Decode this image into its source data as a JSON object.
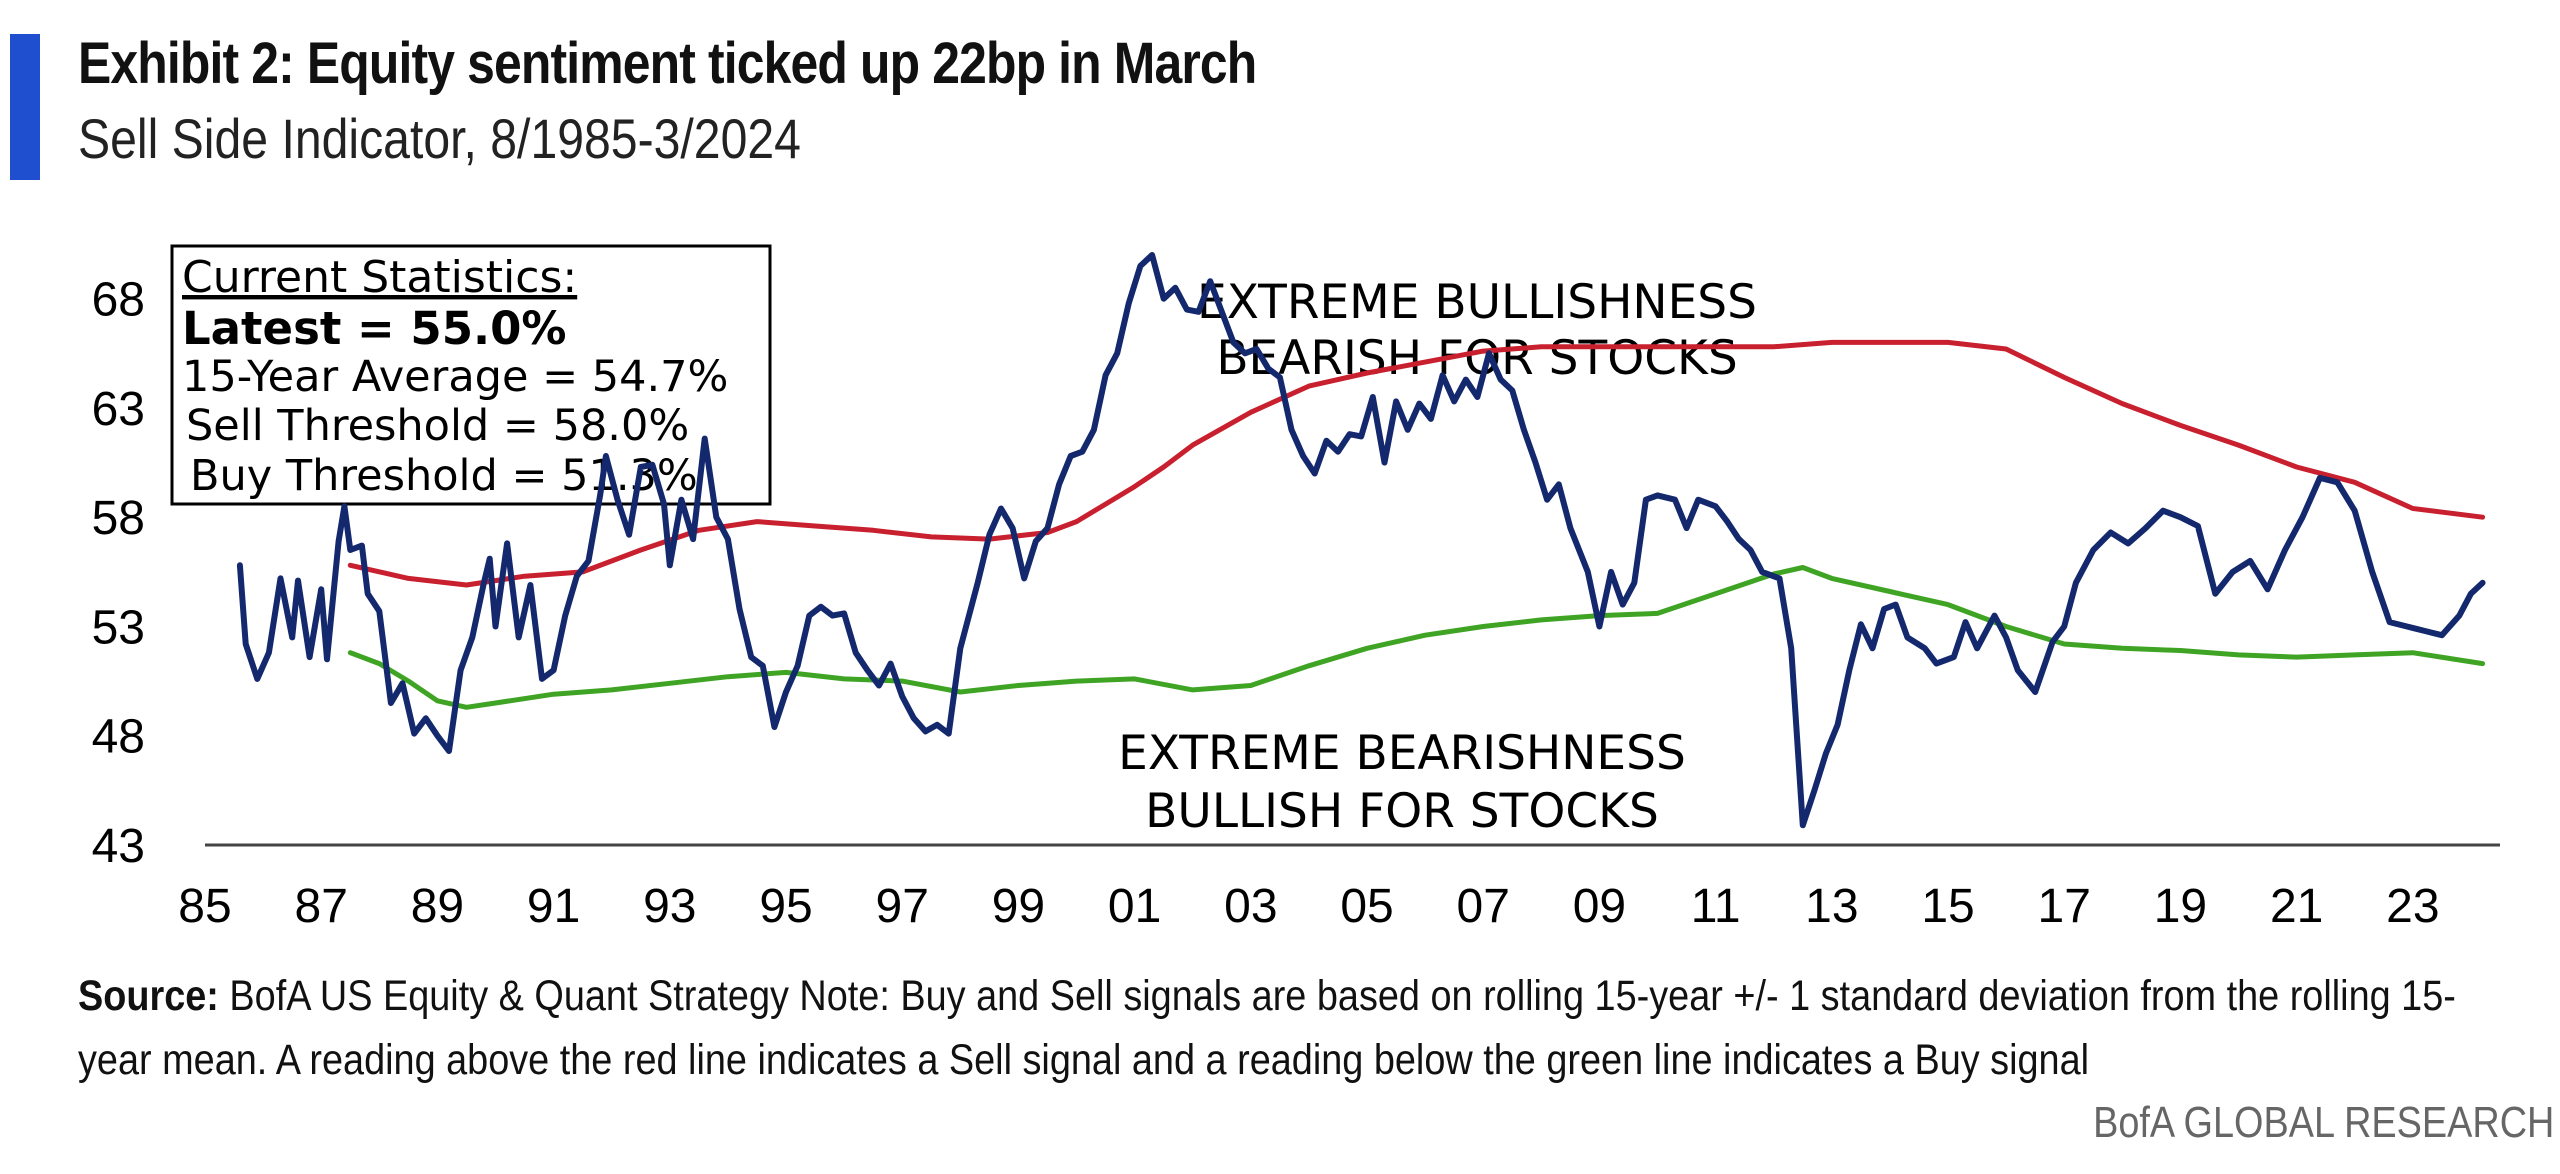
{
  "header": {
    "title": "Exhibit 2: Equity sentiment ticked up 22bp in March",
    "subtitle": "Sell Side Indicator, 8/1985-3/2024",
    "accent_color": "#1f4fcf"
  },
  "stats_box": {
    "heading": "Current Statistics:",
    "latest": "Latest = 55.0%",
    "average": "15-Year Average = 54.7%",
    "sell": "Sell Threshold = 58.0%",
    "buy": "Buy Threshold = 51.3%"
  },
  "annotations": {
    "bull_line1": "EXTREME BULLISHNESS",
    "bull_line2": "BEARISH FOR STOCKS",
    "bear_line1": "EXTREME BEARISHNESS",
    "bear_line2": "BULLISH FOR STOCKS"
  },
  "footer": {
    "source_label": "Source:",
    "source_text": "BofA US Equity & Quant Strategy Note: Buy and Sell signals are based on rolling 15-year +/- 1 standard deviation from the rolling 15-year mean. A reading above the red line indicates a Sell signal and a reading below the green line indicates a Buy signal",
    "brand": "BofA GLOBAL RESEARCH"
  },
  "chart_data": {
    "type": "line",
    "title": "Exhibit 2: Equity sentiment ticked up 22bp in March",
    "subtitle": "Sell Side Indicator, 8/1985-3/2024",
    "xlabel": "",
    "ylabel": "",
    "xlim": [
      1985,
      2024.5
    ],
    "ylim": [
      43,
      70
    ],
    "grid": false,
    "x_tick_values": [
      1985,
      1987,
      1989,
      1991,
      1993,
      1995,
      1997,
      1999,
      2001,
      2003,
      2005,
      2007,
      2009,
      2011,
      2013,
      2015,
      2017,
      2019,
      2021,
      2023
    ],
    "x_tick_labels": [
      "85",
      "87",
      "89",
      "91",
      "93",
      "95",
      "97",
      "99",
      "01",
      "03",
      "05",
      "07",
      "09",
      "11",
      "13",
      "15",
      "17",
      "19",
      "21",
      "23"
    ],
    "y_ticks": [
      43,
      48,
      53,
      58,
      63,
      68
    ],
    "series": [
      {
        "name": "Sell Side Indicator",
        "color": "#14286e",
        "points": [
          [
            1985.6,
            55.8
          ],
          [
            1985.7,
            52.2
          ],
          [
            1985.9,
            50.6
          ],
          [
            1986.1,
            51.8
          ],
          [
            1986.3,
            55.2
          ],
          [
            1986.5,
            52.5
          ],
          [
            1986.6,
            55.1
          ],
          [
            1986.8,
            51.6
          ],
          [
            1987.0,
            54.7
          ],
          [
            1987.1,
            51.5
          ],
          [
            1987.3,
            56.9
          ],
          [
            1987.4,
            58.5
          ],
          [
            1987.5,
            56.5
          ],
          [
            1987.7,
            56.7
          ],
          [
            1987.8,
            54.5
          ],
          [
            1988.0,
            53.7
          ],
          [
            1988.2,
            49.5
          ],
          [
            1988.4,
            50.4
          ],
          [
            1988.6,
            48.1
          ],
          [
            1988.8,
            48.8
          ],
          [
            1989.0,
            48.0
          ],
          [
            1989.2,
            47.3
          ],
          [
            1989.4,
            51.0
          ],
          [
            1989.6,
            52.5
          ],
          [
            1989.8,
            55.0
          ],
          [
            1989.9,
            56.1
          ],
          [
            1990.0,
            53.0
          ],
          [
            1990.2,
            56.8
          ],
          [
            1990.4,
            52.5
          ],
          [
            1990.6,
            54.9
          ],
          [
            1990.8,
            50.6
          ],
          [
            1991.0,
            51.0
          ],
          [
            1991.2,
            53.5
          ],
          [
            1991.4,
            55.3
          ],
          [
            1991.6,
            56.0
          ],
          [
            1991.8,
            59.0
          ],
          [
            1991.9,
            60.8
          ],
          [
            1992.1,
            58.8
          ],
          [
            1992.3,
            57.2
          ],
          [
            1992.5,
            60.3
          ],
          [
            1992.7,
            60.4
          ],
          [
            1992.9,
            58.6
          ],
          [
            1993.0,
            55.8
          ],
          [
            1993.2,
            58.8
          ],
          [
            1993.4,
            57.0
          ],
          [
            1993.6,
            61.6
          ],
          [
            1993.8,
            58.0
          ],
          [
            1994.0,
            57.0
          ],
          [
            1994.2,
            53.8
          ],
          [
            1994.4,
            51.6
          ],
          [
            1994.6,
            51.2
          ],
          [
            1994.8,
            48.4
          ],
          [
            1995.0,
            50.0
          ],
          [
            1995.2,
            51.2
          ],
          [
            1995.4,
            53.5
          ],
          [
            1995.6,
            53.9
          ],
          [
            1995.8,
            53.5
          ],
          [
            1996.0,
            53.6
          ],
          [
            1996.2,
            51.8
          ],
          [
            1996.4,
            51.0
          ],
          [
            1996.6,
            50.3
          ],
          [
            1996.8,
            51.3
          ],
          [
            1997.0,
            49.8
          ],
          [
            1997.2,
            48.8
          ],
          [
            1997.4,
            48.2
          ],
          [
            1997.6,
            48.5
          ],
          [
            1997.8,
            48.1
          ],
          [
            1998.0,
            52.0
          ],
          [
            1998.3,
            55.0
          ],
          [
            1998.5,
            57.2
          ],
          [
            1998.7,
            58.4
          ],
          [
            1998.9,
            57.5
          ],
          [
            1999.1,
            55.2
          ],
          [
            1999.3,
            56.9
          ],
          [
            1999.5,
            57.5
          ],
          [
            1999.7,
            59.5
          ],
          [
            1999.9,
            60.8
          ],
          [
            2000.1,
            61.0
          ],
          [
            2000.3,
            62.0
          ],
          [
            2000.5,
            64.5
          ],
          [
            2000.7,
            65.5
          ],
          [
            2000.9,
            67.8
          ],
          [
            2001.1,
            69.5
          ],
          [
            2001.3,
            70.0
          ],
          [
            2001.5,
            68.0
          ],
          [
            2001.7,
            68.5
          ],
          [
            2001.9,
            67.5
          ],
          [
            2002.1,
            67.4
          ],
          [
            2002.3,
            68.8
          ],
          [
            2002.5,
            67.4
          ],
          [
            2002.7,
            66.0
          ],
          [
            2002.9,
            65.5
          ],
          [
            2003.1,
            65.7
          ],
          [
            2003.3,
            64.8
          ],
          [
            2003.5,
            64.4
          ],
          [
            2003.7,
            62.0
          ],
          [
            2003.9,
            60.8
          ],
          [
            2004.1,
            60.0
          ],
          [
            2004.3,
            61.5
          ],
          [
            2004.5,
            61.0
          ],
          [
            2004.7,
            61.8
          ],
          [
            2004.9,
            61.7
          ],
          [
            2005.1,
            63.5
          ],
          [
            2005.3,
            60.5
          ],
          [
            2005.5,
            63.3
          ],
          [
            2005.7,
            62.0
          ],
          [
            2005.9,
            63.2
          ],
          [
            2006.1,
            62.5
          ],
          [
            2006.3,
            64.5
          ],
          [
            2006.5,
            63.3
          ],
          [
            2006.7,
            64.3
          ],
          [
            2006.9,
            63.5
          ],
          [
            2007.1,
            65.5
          ],
          [
            2007.3,
            64.3
          ],
          [
            2007.5,
            63.8
          ],
          [
            2007.7,
            62.0
          ],
          [
            2007.9,
            60.5
          ],
          [
            2008.1,
            58.8
          ],
          [
            2008.3,
            59.5
          ],
          [
            2008.5,
            57.5
          ],
          [
            2008.8,
            55.5
          ],
          [
            2009.0,
            53.0
          ],
          [
            2009.2,
            55.5
          ],
          [
            2009.4,
            54.0
          ],
          [
            2009.6,
            55.0
          ],
          [
            2009.8,
            58.8
          ],
          [
            2010.0,
            59.0
          ],
          [
            2010.3,
            58.8
          ],
          [
            2010.5,
            57.5
          ],
          [
            2010.7,
            58.8
          ],
          [
            2011.0,
            58.5
          ],
          [
            2011.2,
            57.8
          ],
          [
            2011.4,
            57.0
          ],
          [
            2011.6,
            56.5
          ],
          [
            2011.8,
            55.5
          ],
          [
            2012.1,
            55.2
          ],
          [
            2012.3,
            52.0
          ],
          [
            2012.5,
            43.9
          ],
          [
            2012.7,
            45.5
          ],
          [
            2012.9,
            47.2
          ],
          [
            2013.1,
            48.5
          ],
          [
            2013.3,
            51.0
          ],
          [
            2013.5,
            53.1
          ],
          [
            2013.7,
            52.0
          ],
          [
            2013.9,
            53.8
          ],
          [
            2014.1,
            54.0
          ],
          [
            2014.3,
            52.5
          ],
          [
            2014.6,
            52.0
          ],
          [
            2014.8,
            51.3
          ],
          [
            2015.1,
            51.6
          ],
          [
            2015.3,
            53.2
          ],
          [
            2015.5,
            52.0
          ],
          [
            2015.8,
            53.5
          ],
          [
            2016.0,
            52.5
          ],
          [
            2016.2,
            51.0
          ],
          [
            2016.5,
            50.0
          ],
          [
            2016.8,
            52.3
          ],
          [
            2017.0,
            53.0
          ],
          [
            2017.2,
            55.0
          ],
          [
            2017.5,
            56.5
          ],
          [
            2017.8,
            57.3
          ],
          [
            2018.1,
            56.8
          ],
          [
            2018.4,
            57.5
          ],
          [
            2018.7,
            58.3
          ],
          [
            2019.0,
            58.0
          ],
          [
            2019.3,
            57.6
          ],
          [
            2019.6,
            54.5
          ],
          [
            2019.9,
            55.5
          ],
          [
            2020.2,
            56.0
          ],
          [
            2020.5,
            54.7
          ],
          [
            2020.8,
            56.5
          ],
          [
            2021.1,
            58.0
          ],
          [
            2021.4,
            59.8
          ],
          [
            2021.7,
            59.6
          ],
          [
            2022.0,
            58.3
          ],
          [
            2022.3,
            55.5
          ],
          [
            2022.6,
            53.2
          ],
          [
            2022.9,
            53.0
          ],
          [
            2023.2,
            52.8
          ],
          [
            2023.5,
            52.6
          ],
          [
            2023.8,
            53.5
          ],
          [
            2024.0,
            54.5
          ],
          [
            2024.2,
            55.0
          ]
        ]
      },
      {
        "name": "Sell Threshold",
        "color": "#c8202e",
        "points": [
          [
            1987.5,
            55.8
          ],
          [
            1988.5,
            55.2
          ],
          [
            1989.5,
            54.9
          ],
          [
            1990.5,
            55.3
          ],
          [
            1991.5,
            55.5
          ],
          [
            1992.5,
            56.5
          ],
          [
            1993.5,
            57.4
          ],
          [
            1994.5,
            57.8
          ],
          [
            1995.5,
            57.6
          ],
          [
            1996.5,
            57.4
          ],
          [
            1997.5,
            57.1
          ],
          [
            1998.5,
            57.0
          ],
          [
            1999.5,
            57.3
          ],
          [
            2000.0,
            57.8
          ],
          [
            2000.5,
            58.6
          ],
          [
            2001.0,
            59.4
          ],
          [
            2001.5,
            60.3
          ],
          [
            2002.0,
            61.3
          ],
          [
            2003.0,
            62.8
          ],
          [
            2004.0,
            64.0
          ],
          [
            2005.0,
            64.6
          ],
          [
            2006.0,
            65.1
          ],
          [
            2007.0,
            65.6
          ],
          [
            2008.0,
            65.8
          ],
          [
            2010.0,
            65.8
          ],
          [
            2012.0,
            65.8
          ],
          [
            2013.0,
            66.0
          ],
          [
            2015.0,
            66.0
          ],
          [
            2016.0,
            65.7
          ],
          [
            2017.0,
            64.4
          ],
          [
            2018.0,
            63.2
          ],
          [
            2019.0,
            62.2
          ],
          [
            2020.0,
            61.3
          ],
          [
            2021.0,
            60.3
          ],
          [
            2022.0,
            59.6
          ],
          [
            2023.0,
            58.4
          ],
          [
            2024.2,
            58.0
          ]
        ]
      },
      {
        "name": "Buy Threshold",
        "color": "#3fa424",
        "points": [
          [
            1987.5,
            51.8
          ],
          [
            1988.0,
            51.3
          ],
          [
            1988.5,
            50.5
          ],
          [
            1989.0,
            49.6
          ],
          [
            1989.5,
            49.3
          ],
          [
            1990.0,
            49.5
          ],
          [
            1991.0,
            49.9
          ],
          [
            1992.0,
            50.1
          ],
          [
            1993.0,
            50.4
          ],
          [
            1994.0,
            50.7
          ],
          [
            1995.0,
            50.9
          ],
          [
            1996.0,
            50.6
          ],
          [
            1997.0,
            50.5
          ],
          [
            1998.0,
            50.0
          ],
          [
            1999.0,
            50.3
          ],
          [
            2000.0,
            50.5
          ],
          [
            2001.0,
            50.6
          ],
          [
            2002.0,
            50.1
          ],
          [
            2003.0,
            50.3
          ],
          [
            2004.0,
            51.2
          ],
          [
            2005.0,
            52.0
          ],
          [
            2006.0,
            52.6
          ],
          [
            2007.0,
            53.0
          ],
          [
            2008.0,
            53.3
          ],
          [
            2009.0,
            53.5
          ],
          [
            2010.0,
            53.6
          ],
          [
            2011.0,
            54.5
          ],
          [
            2012.0,
            55.4
          ],
          [
            2012.5,
            55.7
          ],
          [
            2013.0,
            55.2
          ],
          [
            2014.0,
            54.6
          ],
          [
            2015.0,
            54.0
          ],
          [
            2016.0,
            53.0
          ],
          [
            2017.0,
            52.2
          ],
          [
            2018.0,
            52.0
          ],
          [
            2019.0,
            51.9
          ],
          [
            2020.0,
            51.7
          ],
          [
            2021.0,
            51.6
          ],
          [
            2022.0,
            51.7
          ],
          [
            2023.0,
            51.8
          ],
          [
            2024.2,
            51.3
          ]
        ]
      }
    ]
  }
}
